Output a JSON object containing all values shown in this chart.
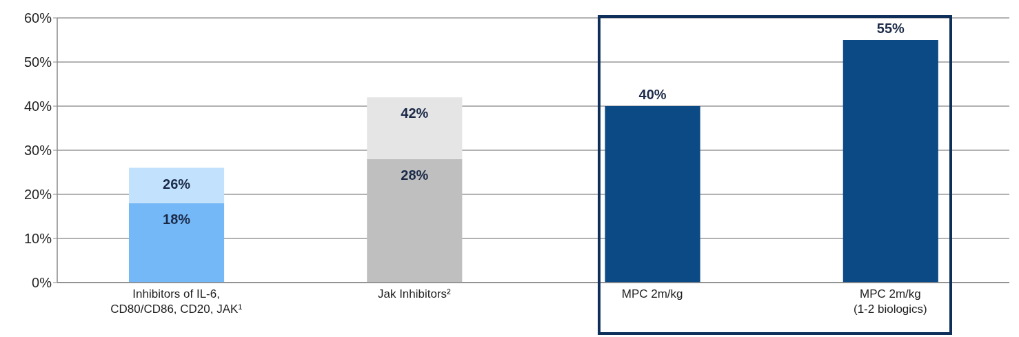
{
  "chart_data": {
    "type": "bar",
    "categories": [
      "Inhibitors  of IL-6,\nCD80/CD86, CD20, JAK¹",
      "Jak Inhibitors²",
      "MPC 2m/kg",
      "MPC 2m/kg\n(1-2 biologics)"
    ],
    "series": [
      {
        "colors": [
          "#74b8f7",
          "#bfbfbf",
          "#0b4a85",
          "#0b4a85"
        ],
        "values": [
          18,
          28,
          40,
          55
        ],
        "value_labels": [
          "18%",
          "28%",
          "40%",
          "55%"
        ]
      },
      {
        "colors": [
          "#c2e1fc",
          "#e5e5e5",
          null,
          null
        ],
        "values": [
          8,
          14,
          null,
          null
        ]
      }
    ],
    "totals": [
      "26%",
      "42%",
      null,
      null
    ],
    "stacked": true,
    "ylim": [
      0,
      60
    ],
    "yticks": [
      {
        "value": 0,
        "label": "0%"
      },
      {
        "value": 10,
        "label": "10%"
      },
      {
        "value": 20,
        "label": "20%"
      },
      {
        "value": 30,
        "label": "30%"
      },
      {
        "value": 40,
        "label": "40%"
      },
      {
        "value": 50,
        "label": "50%"
      },
      {
        "value": 60,
        "label": "60%"
      }
    ],
    "grid": "y"
  }
}
